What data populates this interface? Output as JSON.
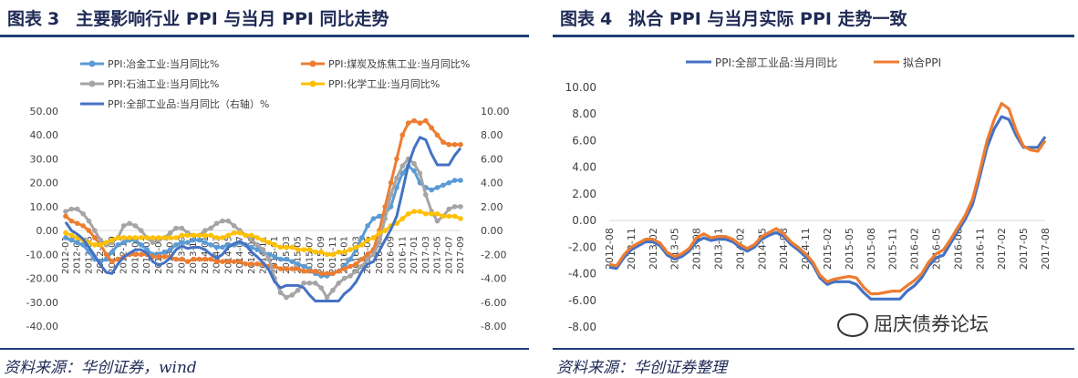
{
  "left": {
    "title_prefix": "图表",
    "title_num": "3",
    "title_text": "主要影响行业 PPI 与当月 PPI 同比走势",
    "source": "资料来源：华创证券，wind"
  },
  "right": {
    "title_prefix": "图表",
    "title_num": "4",
    "title_text": "拟合 PPI 与当月实际 PPI 走势一致",
    "source": "资料来源：华创证券整理",
    "watermark": "屈庆债券论坛"
  },
  "chart_data": [
    {
      "type": "line",
      "title": "",
      "x": [
        "2012-01",
        "2012-02",
        "2012-03",
        "2012-04",
        "2012-05",
        "2012-06",
        "2012-07",
        "2012-08",
        "2012-09",
        "2012-10",
        "2012-11",
        "2012-12",
        "2013-01",
        "2013-02",
        "2013-03",
        "2013-04",
        "2013-05",
        "2013-06",
        "2013-07",
        "2013-08",
        "2013-09",
        "2013-10",
        "2013-11",
        "2013-12",
        "2014-01",
        "2014-02",
        "2014-03",
        "2014-04",
        "2014-05",
        "2014-06",
        "2014-07",
        "2014-08",
        "2014-09",
        "2014-10",
        "2014-11",
        "2014-12",
        "2015-01",
        "2015-02",
        "2015-03",
        "2015-04",
        "2015-05",
        "2015-06",
        "2015-07",
        "2015-08",
        "2015-09",
        "2015-10",
        "2015-11",
        "2015-12",
        "2016-01",
        "2016-02",
        "2016-03",
        "2016-04",
        "2016-05",
        "2016-06",
        "2016-07",
        "2016-08",
        "2016-09",
        "2016-10",
        "2016-11",
        "2016-12",
        "2017-01",
        "2017-02",
        "2017-03",
        "2017-04",
        "2017-05",
        "2017-06",
        "2017-07",
        "2017-08",
        "2017-09"
      ],
      "x_tick_labels": [
        "2012-01",
        "2012-03",
        "2012-05",
        "2012-07",
        "2012-09",
        "2012-11",
        "2013-01",
        "2013-03",
        "2013-05",
        "2013-07",
        "2013-09",
        "2013-11",
        "2014-01",
        "2014-03",
        "2014-05",
        "2014-07",
        "2014-09",
        "2014-11",
        "2015-01",
        "2015-03",
        "2015-05",
        "2015-07",
        "2015-09",
        "2015-11",
        "2016-01",
        "2016-03",
        "2016-05",
        "2016-07",
        "2016-09",
        "2016-11",
        "2017-01",
        "2017-03",
        "2017-05",
        "2017-07",
        "2017-09"
      ],
      "y_left": {
        "min": -40,
        "max": 50,
        "step": 10,
        "ticks": [
          "-40.00",
          "-30.00",
          "-20.00",
          "-10.00",
          "0.00",
          "10.00",
          "20.00",
          "30.00",
          "40.00",
          "50.00"
        ]
      },
      "y_right": {
        "min": -8,
        "max": 10,
        "step": 2,
        "ticks": [
          "-8.00",
          "-6.00",
          "-4.00",
          "-2.00",
          "0.00",
          "2.00",
          "4.00",
          "6.00",
          "8.00",
          "10.00"
        ]
      },
      "grid": false,
      "legend_position": "top",
      "series": [
        {
          "name": "PPI:冶金工业:当月同比%",
          "color": "#5b9bd5",
          "axis": "left",
          "markers": true,
          "values": [
            -3,
            -4,
            -5,
            -6,
            -9,
            -12,
            -13,
            -12,
            -9,
            -6,
            -5,
            -4,
            -4,
            -6,
            -8,
            -10,
            -10,
            -9,
            -8,
            -6,
            -5,
            -5,
            -4,
            -4,
            -5,
            -6,
            -7,
            -7,
            -6,
            -6,
            -5,
            -6,
            -7,
            -8,
            -9,
            -10,
            -11,
            -12,
            -12,
            -13,
            -14,
            -15,
            -16,
            -18,
            -19,
            -19,
            -18,
            -17,
            -15,
            -12,
            -8,
            -3,
            2,
            5,
            6,
            7,
            10,
            18,
            24,
            27,
            25,
            20,
            18,
            17,
            18,
            19,
            20,
            21,
            21
          ]
        },
        {
          "name": "PPI:煤炭及炼焦工业:当月同比%",
          "color": "#ed7d31",
          "axis": "left",
          "markers": true,
          "values": [
            6,
            4,
            3,
            2,
            0,
            -3,
            -6,
            -10,
            -13,
            -12,
            -11,
            -10,
            -10,
            -10,
            -10,
            -11,
            -11,
            -11,
            -11,
            -12,
            -12,
            -13,
            -12,
            -12,
            -12,
            -12,
            -13,
            -13,
            -13,
            -13,
            -13,
            -14,
            -14,
            -14,
            -14,
            -15,
            -15,
            -16,
            -16,
            -16,
            -16,
            -17,
            -17,
            -17,
            -18,
            -18,
            -18,
            -17,
            -16,
            -15,
            -14,
            -12,
            -10,
            -8,
            0,
            10,
            20,
            30,
            40,
            45,
            46,
            45,
            46,
            43,
            40,
            37,
            36,
            36,
            36
          ]
        },
        {
          "name": "PPI:石油工业:当月同比%",
          "color": "#a5a5a5",
          "axis": "left",
          "markers": true,
          "values": [
            8,
            9,
            9,
            7,
            4,
            0,
            -4,
            -6,
            -5,
            -3,
            2,
            3,
            2,
            0,
            -3,
            -5,
            -4,
            -3,
            -1,
            1,
            1,
            -1,
            -2,
            -2,
            0,
            1,
            3,
            4,
            4,
            2,
            0,
            -2,
            -4,
            -6,
            -8,
            -12,
            -20,
            -26,
            -28,
            -27,
            -25,
            -22,
            -22,
            -22,
            -24,
            -28,
            -25,
            -22,
            -20,
            -19,
            -17,
            -15,
            -12,
            -10,
            -5,
            5,
            15,
            22,
            27,
            30,
            28,
            24,
            15,
            8,
            4,
            6,
            9,
            10,
            10
          ]
        },
        {
          "name": "PPI:化学工业:当月同比%",
          "color": "#ffc000",
          "axis": "left",
          "markers": true,
          "values": [
            -1,
            -2,
            -3,
            -4,
            -5,
            -6,
            -6,
            -5,
            -4,
            -3,
            -3,
            -3,
            -3,
            -3,
            -3,
            -3,
            -3,
            -3,
            -3,
            -3,
            -2,
            -2,
            -2,
            -2,
            -2,
            -2,
            -3,
            -3,
            -2,
            -1,
            -1,
            -2,
            -2,
            -3,
            -4,
            -5,
            -6,
            -7,
            -7,
            -7,
            -8,
            -8,
            -8,
            -9,
            -9,
            -10,
            -10,
            -9,
            -9,
            -8,
            -7,
            -6,
            -4,
            -3,
            -1,
            0,
            2,
            3,
            5,
            7,
            8,
            8,
            7,
            7,
            7,
            6,
            6,
            6,
            5
          ]
        },
        {
          "name": "PPI:全部工业品:当月同比（右轴）%",
          "color": "#4472c4",
          "axis": "right",
          "markers": false,
          "values": [
            0.7,
            0.0,
            -0.3,
            -0.7,
            -1.4,
            -2.1,
            -2.9,
            -3.5,
            -3.6,
            -2.8,
            -2.2,
            -1.9,
            -1.6,
            -1.6,
            -1.9,
            -2.6,
            -2.9,
            -2.7,
            -2.3,
            -1.6,
            -1.3,
            -1.5,
            -1.4,
            -1.4,
            -1.6,
            -2.0,
            -2.3,
            -2.0,
            -1.4,
            -1.1,
            -0.9,
            -1.2,
            -1.8,
            -2.2,
            -2.7,
            -3.3,
            -4.3,
            -4.8,
            -4.6,
            -4.6,
            -4.6,
            -4.8,
            -5.4,
            -5.9,
            -5.9,
            -5.9,
            -5.9,
            -5.9,
            -5.3,
            -4.9,
            -4.3,
            -3.4,
            -2.8,
            -2.6,
            -1.7,
            -0.8,
            0.1,
            1.2,
            3.3,
            5.5,
            6.9,
            7.8,
            7.6,
            6.4,
            5.5,
            5.5,
            5.5,
            6.3,
            6.9
          ]
        }
      ]
    },
    {
      "type": "line",
      "title": "",
      "x": [
        "2012-08",
        "2012-09",
        "2012-10",
        "2012-11",
        "2012-12",
        "2013-01",
        "2013-02",
        "2013-03",
        "2013-04",
        "2013-05",
        "2013-06",
        "2013-07",
        "2013-08",
        "2013-09",
        "2013-10",
        "2013-11",
        "2013-12",
        "2014-01",
        "2014-02",
        "2014-03",
        "2014-04",
        "2014-05",
        "2014-06",
        "2014-07",
        "2014-08",
        "2014-09",
        "2014-10",
        "2014-11",
        "2014-12",
        "2015-01",
        "2015-02",
        "2015-03",
        "2015-04",
        "2015-05",
        "2015-06",
        "2015-07",
        "2015-08",
        "2015-09",
        "2015-10",
        "2015-11",
        "2015-12",
        "2016-01",
        "2016-02",
        "2016-03",
        "2016-04",
        "2016-05",
        "2016-06",
        "2016-07",
        "2016-08",
        "2016-09",
        "2016-10",
        "2016-11",
        "2016-12",
        "2017-01",
        "2017-02",
        "2017-03",
        "2017-04",
        "2017-05",
        "2017-06",
        "2017-07",
        "2017-08"
      ],
      "x_tick_labels": [
        "2012-08",
        "2012-11",
        "2013-02",
        "2013-05",
        "2013-08",
        "2013-11",
        "2014-02",
        "2014-05",
        "2014-08",
        "2014-11",
        "2015-02",
        "2015-05",
        "2015-08",
        "2015-11",
        "2016-02",
        "2016-05",
        "2016-08",
        "2016-11",
        "2017-02",
        "2017-05",
        "2017-08"
      ],
      "y": {
        "min": -8,
        "max": 10,
        "step": 2,
        "ticks": [
          "-8.00",
          "-6.00",
          "-4.00",
          "-2.00",
          "0.00",
          "2.00",
          "4.00",
          "6.00",
          "8.00",
          "10.00"
        ]
      },
      "grid": false,
      "legend_position": "top",
      "series": [
        {
          "name": "PPI:全部工业品:当月同比",
          "color": "#4472c4",
          "values": [
            -3.5,
            -3.6,
            -2.8,
            -2.2,
            -1.9,
            -1.6,
            -1.6,
            -1.9,
            -2.6,
            -2.9,
            -2.7,
            -2.3,
            -1.6,
            -1.3,
            -1.5,
            -1.4,
            -1.4,
            -1.6,
            -2.0,
            -2.3,
            -2.0,
            -1.4,
            -1.1,
            -0.9,
            -1.2,
            -1.8,
            -2.2,
            -2.7,
            -3.3,
            -4.3,
            -4.8,
            -4.6,
            -4.6,
            -4.6,
            -4.8,
            -5.4,
            -5.9,
            -5.9,
            -5.9,
            -5.9,
            -5.9,
            -5.3,
            -4.9,
            -4.3,
            -3.4,
            -2.8,
            -2.6,
            -1.7,
            -0.8,
            0.1,
            1.2,
            3.3,
            5.5,
            6.9,
            7.8,
            7.6,
            6.4,
            5.5,
            5.5,
            5.5,
            6.3
          ]
        },
        {
          "name": "拟合PPI",
          "color": "#ed7d31",
          "values": [
            -3.3,
            -3.4,
            -2.6,
            -2.0,
            -1.7,
            -1.4,
            -1.4,
            -1.7,
            -2.4,
            -2.7,
            -2.5,
            -2.1,
            -1.3,
            -1.0,
            -1.3,
            -1.2,
            -1.2,
            -1.4,
            -1.8,
            -2.1,
            -1.8,
            -1.2,
            -0.9,
            -0.6,
            -1.0,
            -1.6,
            -2.0,
            -2.5,
            -3.1,
            -4.1,
            -4.6,
            -4.4,
            -4.3,
            -4.2,
            -4.3,
            -5.0,
            -5.5,
            -5.5,
            -5.4,
            -5.3,
            -5.3,
            -4.9,
            -4.5,
            -4.0,
            -3.1,
            -2.5,
            -2.2,
            -1.4,
            -0.5,
            0.4,
            1.6,
            3.7,
            6.0,
            7.6,
            8.8,
            8.4,
            6.8,
            5.6,
            5.3,
            5.2,
            6.0
          ]
        }
      ]
    }
  ]
}
